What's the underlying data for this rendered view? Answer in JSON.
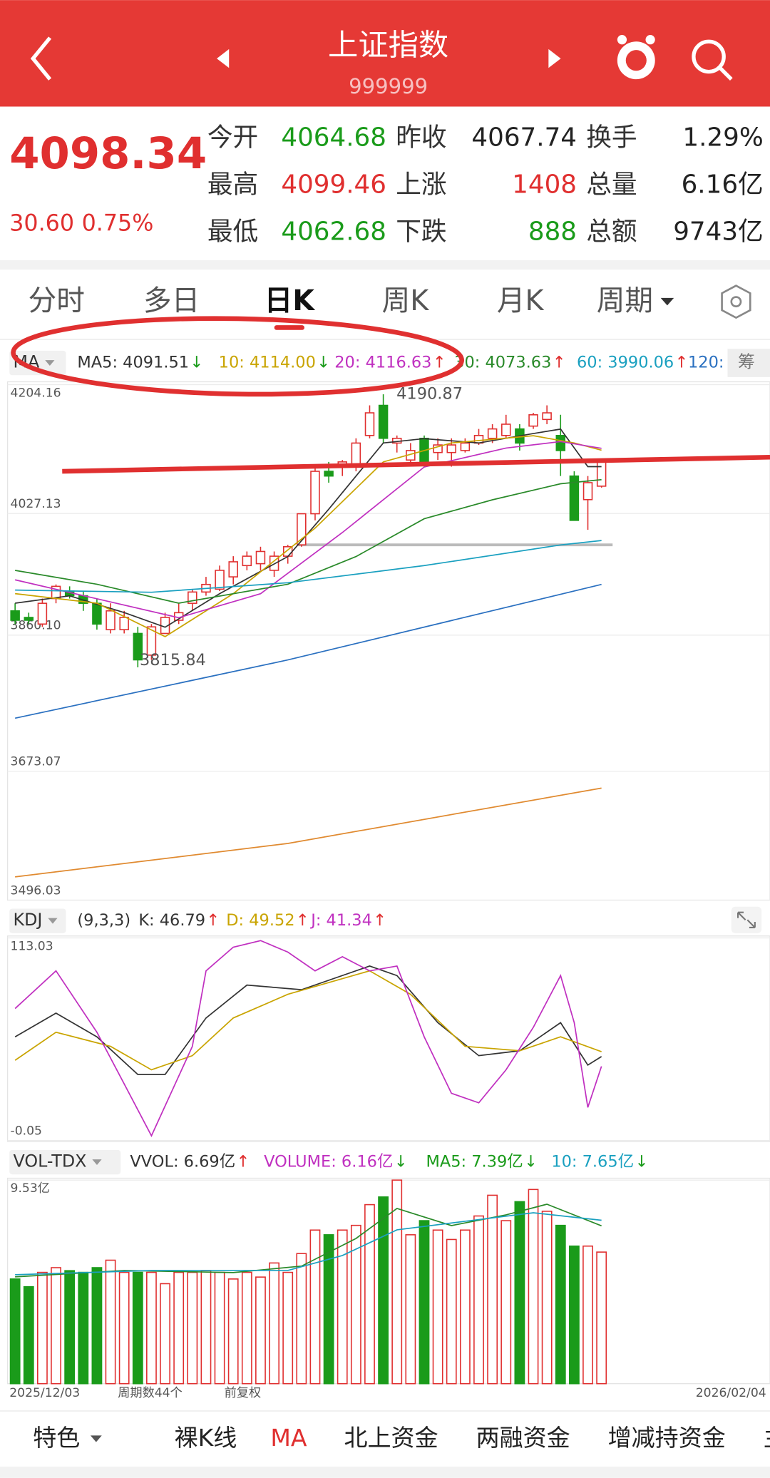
{
  "header": {
    "title": "上证指数",
    "code": "999999"
  },
  "quote": {
    "price": "4098.34",
    "change": "30.60",
    "change_pct": "0.75%",
    "fields": [
      [
        {
          "label": "今开",
          "value": "4064.68",
          "color": "#1a9b1a"
        },
        {
          "label": "昨收",
          "value": "4067.74",
          "color": "#222222"
        },
        {
          "label": "换手",
          "value": "1.29%",
          "color": "#222222"
        }
      ],
      [
        {
          "label": "最高",
          "value": "4099.46",
          "color": "#e02f2f"
        },
        {
          "label": "上涨",
          "value": "1408",
          "color": "#e02f2f"
        },
        {
          "label": "总量",
          "value": "6.16亿",
          "color": "#222222"
        }
      ],
      [
        {
          "label": "最低",
          "value": "4062.68",
          "color": "#1a9b1a"
        },
        {
          "label": "下跌",
          "value": "888",
          "color": "#1a9b1a"
        },
        {
          "label": "总额",
          "value": "9743亿",
          "color": "#222222"
        }
      ]
    ]
  },
  "tabs": {
    "items": [
      "分时",
      "多日",
      "日K",
      "周K",
      "月K",
      "周期"
    ],
    "selected": 2
  },
  "chart_data": [
    {
      "type": "candlestick",
      "legend_label": "MA",
      "legend": [
        {
          "text": "MA5: 4091.51",
          "arrow": "↓",
          "color": "#333333",
          "arrow_color": "#1a9b1a"
        },
        {
          "text": "10: 4114.00",
          "arrow": "↓",
          "color": "#c9a400",
          "arrow_color": "#1a9b1a"
        },
        {
          "text": "20: 4116.63",
          "arrow": "↑",
          "color": "#c030c0",
          "arrow_color": "#e02f2f"
        },
        {
          "text": "30: 4073.63",
          "arrow": "↑",
          "color": "#2a8a2a",
          "arrow_color": "#e02f2f"
        },
        {
          "text": "60: 3990.06",
          "arrow": "↑",
          "color": "#1aa0c0",
          "arrow_color": "#e02f2f"
        },
        {
          "text": "120:",
          "color": "#2a70c0"
        }
      ],
      "side_button": "筹",
      "ylim": [
        3496.03,
        4204.16
      ],
      "yticks": [
        4204.16,
        4027.13,
        {
          "value": 3860.1,
          "label": "3860.10"
        },
        3673.07,
        3496.03
      ],
      "up_color": "#e02f2f",
      "down_color": "#1a9b1a",
      "candles": [
        [
          3893.4,
          3903.8,
          3875.3,
          3880.5
        ],
        [
          3884.4,
          3890.9,
          3875.3,
          3880.5
        ],
        [
          3875.3,
          3910.3,
          3871.4,
          3903.8
        ],
        [
          3910.3,
          3929.7,
          3903.8,
          3927.1
        ],
        [
          3920.6,
          3927.1,
          3910.3,
          3914.2
        ],
        [
          3914.2,
          3920.6,
          3893.4,
          3903.8
        ],
        [
          3903.8,
          3910.3,
          3867.6,
          3875.3
        ],
        [
          3867.6,
          3903.8,
          3862.4,
          3893.4
        ],
        [
          3867.6,
          3893.4,
          3862.4,
          3884.4
        ],
        [
          3862.4,
          3871.4,
          3815.84,
          3826.1
        ],
        [
          3832.6,
          3875.3,
          3826.1,
          3871.4
        ],
        [
          3862.4,
          3890.9,
          3862.4,
          3884.4
        ],
        [
          3880.5,
          3903.8,
          3875.3,
          3890.9
        ],
        [
          3903.8,
          3923.2,
          3893.4,
          3919.3
        ],
        [
          3919.3,
          3940.1,
          3914.2,
          3929.7
        ],
        [
          3923.2,
          3955.6,
          3920.6,
          3949.1
        ],
        [
          3940.1,
          3968.5,
          3929.7,
          3960.8
        ],
        [
          3955.6,
          3975.0,
          3949.1,
          3968.5
        ],
        [
          3958.2,
          3981.5,
          3949.1,
          3975.0
        ],
        [
          3949.1,
          3975.0,
          3940.1,
          3968.5
        ],
        [
          3968.5,
          3984.1,
          3958.2,
          3981.5
        ],
        [
          3984.1,
          4026.8,
          3981.5,
          4026.8
        ],
        [
          4026.8,
          4091.5,
          4017.7,
          4085.1
        ],
        [
          4085.1,
          4098.0,
          4069.5,
          4078.6
        ],
        [
          4091.5,
          4100.6,
          4078.6,
          4098.0
        ],
        [
          4091.5,
          4130.4,
          4085.1,
          4123.9
        ],
        [
          4134.3,
          4175.7,
          4130.4,
          4165.4
        ],
        [
          4175.7,
          4190.87,
          4123.9,
          4130.4
        ],
        [
          4123.9,
          4134.3,
          4110.9,
          4130.4
        ],
        [
          4100.6,
          4123.9,
          4091.5,
          4113.6
        ],
        [
          4130.4,
          4134.3,
          4091.5,
          4098.0
        ],
        [
          4110.9,
          4130.4,
          4100.6,
          4121.3
        ],
        [
          4110.9,
          4130.4,
          4091.5,
          4121.3
        ],
        [
          4113.6,
          4130.4,
          4110.9,
          4123.9
        ],
        [
          4123.9,
          4143.3,
          4121.3,
          4134.3
        ],
        [
          4130.4,
          4149.8,
          4123.9,
          4143.3
        ],
        [
          4134.3,
          4162.7,
          4130.4,
          4149.8
        ],
        [
          4143.3,
          4149.8,
          4113.6,
          4123.9
        ],
        [
          4147.2,
          4165.4,
          4143.3,
          4162.7
        ],
        [
          4156.3,
          4175.7,
          4149.8,
          4165.4
        ],
        [
          4134.3,
          4162.7,
          4078.6,
          4113.6
        ],
        [
          4078.6,
          4085.1,
          4017.7,
          4017.7
        ],
        [
          4046.2,
          4078.6,
          4004.8,
          4069.5
        ],
        [
          4064.68,
          4099.46,
          4062.68,
          4098.34
        ]
      ],
      "series": [
        {
          "color": "#333333",
          "x": [
            0,
            4,
            8,
            11,
            15,
            20,
            23,
            27,
            30,
            34,
            38,
            40,
            42,
            43
          ],
          "values": [
            3904,
            3914,
            3891,
            3871,
            3917,
            3968,
            4033,
            4124,
            4130,
            4124,
            4137,
            4143,
            4091.5,
            4091.51
          ]
        },
        {
          "color": "#c9a400",
          "x": [
            0,
            6,
            11,
            16,
            22,
            27,
            32,
            38,
            41,
            43
          ],
          "values": [
            3917,
            3904,
            3858,
            3917,
            4007,
            4098,
            4124,
            4134,
            4124,
            4114.0
          ]
        },
        {
          "color": "#c030c0",
          "x": [
            0,
            6,
            12,
            18,
            24,
            30,
            36,
            40,
            43
          ],
          "values": [
            3936,
            3910,
            3884,
            3917,
            4001,
            4091,
            4117,
            4126,
            4116.63
          ]
        },
        {
          "color": "#2a8a2a",
          "x": [
            0,
            6,
            12,
            20,
            25,
            30,
            35,
            40,
            43
          ],
          "values": [
            3949,
            3930,
            3904,
            3930,
            3968,
            4020,
            4046,
            4068,
            4073.63
          ]
        },
        {
          "color": "#1aa0c0",
          "x": [
            0,
            10,
            20,
            30,
            40,
            43
          ],
          "values": [
            3922,
            3919,
            3932,
            3955.6,
            3984,
            3990.06
          ]
        },
        {
          "color": "#2a70c0",
          "x": [
            0,
            20,
            43
          ],
          "values": [
            3746,
            3826,
            3929.7
          ]
        },
        {
          "color": "#e08a30",
          "x": [
            0,
            20,
            43
          ],
          "values": [
            3528,
            3574,
            3650
          ]
        }
      ]
    },
    {
      "type": "line",
      "legend_label": "KDJ",
      "legend": [
        {
          "text": "(9,3,3)",
          "color": "#333333"
        },
        {
          "text": "K: 46.79",
          "arrow": "↑",
          "color": "#333333",
          "arrow_color": "#e02f2f"
        },
        {
          "text": "D: 49.52",
          "arrow": "↑",
          "color": "#c9a400",
          "arrow_color": "#e02f2f"
        },
        {
          "text": "J: 41.34",
          "arrow": "↑",
          "color": "#c030c0",
          "arrow_color": "#e02f2f"
        }
      ],
      "ylim": [
        -0.05,
        113.03
      ],
      "yticks": [
        113.03,
        -0.05
      ],
      "series": [
        {
          "color": "#333333",
          "x": [
            0,
            3,
            6,
            9,
            11,
            14,
            17,
            21,
            26,
            28,
            31,
            34,
            37,
            40,
            42,
            43
          ],
          "values": [
            57.8,
            71,
            57.8,
            36.8,
            36.8,
            68.3,
            86.7,
            84.1,
            97.3,
            92,
            65.7,
            47.3,
            50,
            65.7,
            42,
            46.79
          ]
        },
        {
          "color": "#c9a400",
          "x": [
            0,
            3,
            7,
            10,
            13,
            16,
            20,
            26,
            29,
            33,
            37,
            40,
            43
          ],
          "values": [
            44.7,
            60.4,
            52.5,
            39.4,
            47.3,
            68.3,
            81.5,
            94.6,
            81.5,
            52.5,
            50,
            57.8,
            49.52
          ]
        },
        {
          "color": "#c030c0",
          "x": [
            0,
            3,
            6,
            8,
            10,
            13,
            14,
            16,
            18,
            20,
            22,
            24,
            26,
            28,
            30,
            32,
            34,
            36,
            38,
            40,
            41,
            42,
            43
          ],
          "values": [
            73.6,
            94.6,
            60.4,
            31.5,
            2.6,
            52.5,
            94.6,
            107.8,
            111.5,
            105.1,
            94.6,
            102.5,
            94.6,
            97.3,
            57.8,
            26.3,
            21,
            39.4,
            63.1,
            92,
            65.7,
            18.4,
            41.34
          ]
        }
      ]
    },
    {
      "type": "bar",
      "legend_label": "VOL-TDX",
      "legend": [
        {
          "text": "VVOL: 6.69亿",
          "arrow": "↑",
          "color": "#333333",
          "arrow_color": "#e02f2f"
        },
        {
          "text": "VOLUME: 6.16亿",
          "arrow": "↓",
          "color": "#c030c0",
          "arrow_color": "#1a9b1a"
        },
        {
          "text": "MA5: 7.39亿",
          "arrow": "↓",
          "color": "#1a9b1a",
          "arrow_color": "#1a9b1a"
        },
        {
          "text": "10: 7.65亿",
          "arrow": "↓",
          "color": "#1aa0c0",
          "arrow_color": "#1a9b1a"
        }
      ],
      "ylim": [
        0,
        9.53
      ],
      "yticks": [
        {
          "value": 9.53,
          "label": "9.53亿"
        }
      ],
      "values": [
        4.9,
        4.54,
        5.21,
        5.43,
        5.29,
        5.21,
        5.43,
        5.78,
        5.21,
        5.21,
        5.21,
        4.68,
        5.21,
        5.21,
        5.29,
        5.21,
        4.9,
        5.21,
        4.99,
        5.65,
        5.21,
        6.09,
        7.19,
        6.97,
        7.19,
        7.41,
        8.38,
        8.74,
        9.53,
        6.97,
        7.63,
        7.19,
        6.75,
        7.19,
        7.85,
        8.82,
        7.63,
        8.52,
        9.09,
        8.07,
        7.41,
        6.44,
        6.44,
        6.16
      ],
      "series": [
        {
          "color": "#2a8a2a",
          "x": [
            0,
            8,
            16,
            21,
            25,
            28,
            32,
            36,
            39,
            43
          ],
          "values": [
            5.0,
            5.3,
            5.2,
            5.5,
            6.8,
            8.2,
            7.4,
            7.9,
            8.4,
            7.39
          ]
        },
        {
          "color": "#1aa0c0",
          "x": [
            0,
            10,
            20,
            24,
            28,
            33,
            38,
            43
          ],
          "values": [
            5.1,
            5.3,
            5.3,
            6.0,
            7.2,
            7.6,
            8.0,
            7.65
          ]
        }
      ],
      "x_start": "2025/12/03",
      "period_count": "周期数44个",
      "adjust": "前复权",
      "x_end": "2026/02/04"
    }
  ],
  "bottom_nav": {
    "items": [
      "特色",
      "裸K线",
      "MA",
      "北上资金",
      "两融资金",
      "增减持资金",
      "主"
    ],
    "selected": 2
  }
}
